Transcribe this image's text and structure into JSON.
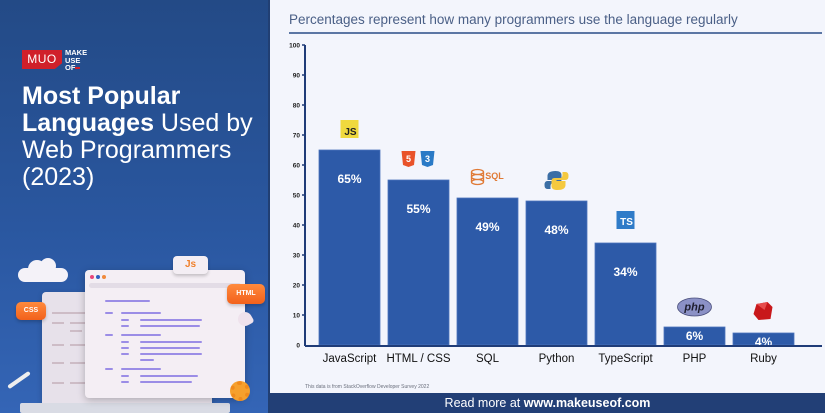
{
  "brand": {
    "logo_mark": "MUO",
    "logo_words": [
      "MAKE",
      "USE",
      "OF"
    ],
    "colors": {
      "logo_red": "#d0202a",
      "panel_blue": "#2a57a0",
      "bar_blue": "#2d5aa8",
      "footer_blue": "#223f76"
    }
  },
  "headline": {
    "line1_bold": "Most Popular",
    "line2_bold": "Languages",
    "line2_light": " Used by",
    "line3": "Web Programmers",
    "line4": "(2023)"
  },
  "illustration": {
    "badges": {
      "js": "Js",
      "html": "HTML",
      "css": "CSS"
    }
  },
  "subtitle": "Percentages represent how many programmers use the language regularly",
  "source_note": "This data is from StackOverflow Developer Survey 2022",
  "footer": {
    "prefix": "Read more at ",
    "link": "www.makeuseof.com"
  },
  "chart_data": {
    "type": "bar",
    "title": "Most Popular Languages Used by Web Programmers (2023)",
    "subtitle": "Percentages represent how many programmers use the language regularly",
    "xlabel": "",
    "ylabel": "",
    "ylim": [
      0,
      100
    ],
    "yticks": [
      0,
      10,
      20,
      30,
      40,
      50,
      60,
      70,
      80,
      90,
      100
    ],
    "grid": false,
    "categories": [
      "JavaScript",
      "HTML / CSS",
      "SQL",
      "Python",
      "TypeScript",
      "PHP",
      "Ruby"
    ],
    "values": [
      65,
      55,
      49,
      48,
      34,
      6,
      4
    ],
    "data_labels": [
      "65%",
      "55%",
      "49%",
      "48%",
      "34%",
      "6%",
      "4%"
    ],
    "icons": [
      "javascript-logo",
      "html5-css3-logo",
      "sql-database-logo",
      "python-logo",
      "typescript-logo",
      "php-logo",
      "ruby-logo"
    ],
    "bar_color": "#2d5aa8"
  }
}
